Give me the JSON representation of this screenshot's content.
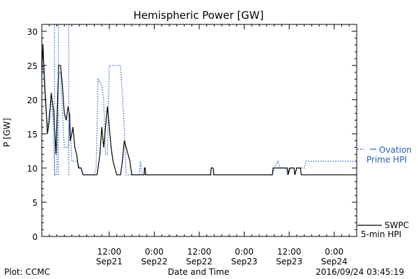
{
  "chart_data": {
    "type": "line",
    "title": "Hemispheric Power [GW]",
    "ylabel": "P [GW]",
    "xlabel": "Date and Time",
    "ylim": [
      0,
      31
    ],
    "xlim_hours_from_sep21_0000": [
      -6,
      78
    ],
    "yticks": [
      0,
      5,
      10,
      15,
      20,
      25,
      30
    ],
    "xticks": [
      {
        "hour": 12,
        "time": "12:00",
        "date": "Sep21"
      },
      {
        "hour": 24,
        "time": "0:00",
        "date": "Sep22"
      },
      {
        "hour": 36,
        "time": "12:00",
        "date": "Sep22"
      },
      {
        "hour": 48,
        "time": "0:00",
        "date": "Sep23"
      },
      {
        "hour": 60,
        "time": "12:00",
        "date": "Sep23"
      },
      {
        "hour": 72,
        "time": "0:00",
        "date": "Sep24"
      }
    ],
    "series": [
      {
        "name": "SWPC 5-min HPI",
        "style": "solid",
        "color": "#000000",
        "points": [
          [
            -6,
            24
          ],
          [
            -5.7,
            28
          ],
          [
            -5.3,
            23
          ],
          [
            -5,
            20
          ],
          [
            -4.5,
            15
          ],
          [
            -4,
            17
          ],
          [
            -3.5,
            21
          ],
          [
            -3,
            19
          ],
          [
            -2.8,
            18
          ],
          [
            -2.5,
            15
          ],
          [
            -2.2,
            12
          ],
          [
            -1.8,
            20
          ],
          [
            -1.5,
            25
          ],
          [
            -1,
            25
          ],
          [
            -0.5,
            22
          ],
          [
            0,
            18
          ],
          [
            0.5,
            17
          ],
          [
            1,
            19
          ],
          [
            1.3,
            18
          ],
          [
            1.6,
            14
          ],
          [
            2,
            15
          ],
          [
            2.3,
            16
          ],
          [
            2.8,
            13
          ],
          [
            3.3,
            12
          ],
          [
            3.8,
            10
          ],
          [
            4.5,
            10
          ],
          [
            5,
            9
          ],
          [
            8.7,
            9
          ],
          [
            9,
            10
          ],
          [
            9.5,
            12
          ],
          [
            10,
            16
          ],
          [
            10.5,
            13
          ],
          [
            11,
            16
          ],
          [
            11.5,
            19
          ],
          [
            12,
            16
          ],
          [
            12.5,
            13
          ],
          [
            13,
            11
          ],
          [
            13.5,
            10
          ],
          [
            14,
            9
          ],
          [
            15,
            9
          ],
          [
            15.5,
            11
          ],
          [
            16,
            14
          ],
          [
            16.5,
            13
          ],
          [
            17,
            12
          ],
          [
            17.5,
            11
          ],
          [
            18,
            9
          ],
          [
            21.3,
            9
          ],
          [
            21.4,
            10
          ],
          [
            21.6,
            10
          ],
          [
            21.7,
            9
          ],
          [
            39,
            9
          ],
          [
            39.2,
            10
          ],
          [
            39.7,
            10
          ],
          [
            39.9,
            9
          ],
          [
            55.5,
            9
          ],
          [
            55.7,
            10
          ],
          [
            59.5,
            10
          ],
          [
            59.7,
            9
          ],
          [
            60.2,
            10
          ],
          [
            61.3,
            10
          ],
          [
            61.5,
            9
          ],
          [
            62,
            10
          ],
          [
            63,
            10
          ],
          [
            63.2,
            9
          ],
          [
            78,
            9
          ]
        ]
      },
      {
        "name": "Ovation Prime HPI",
        "style": "dashed",
        "color": "#1f5fbf",
        "points": [
          [
            -6,
            23
          ],
          [
            -5.7,
            25
          ],
          [
            -5.3,
            22
          ],
          [
            -5,
            19
          ],
          [
            -4.5,
            16
          ],
          [
            -3.5,
            20
          ],
          [
            -3,
            17
          ],
          [
            -2.5,
            9
          ],
          [
            -2,
            9
          ],
          [
            -1.7,
            20
          ],
          [
            -1.4,
            24
          ],
          [
            -1,
            24
          ],
          [
            -0.5,
            18
          ],
          [
            0,
            13
          ],
          [
            1,
            13
          ],
          [
            1.5,
            18
          ],
          [
            2,
            11
          ],
          [
            3.5,
            11
          ],
          [
            4,
            10
          ],
          [
            4.5,
            10
          ],
          [
            5,
            9
          ],
          [
            8,
            9
          ],
          [
            8.5,
            10
          ],
          [
            9,
            23
          ],
          [
            10,
            22
          ],
          [
            10.5,
            20
          ],
          [
            11,
            12
          ],
          [
            11.5,
            12
          ],
          [
            12,
            25
          ],
          [
            14,
            25
          ],
          [
            15,
            25
          ],
          [
            16,
            16
          ],
          [
            16.5,
            9
          ],
          [
            20,
            9
          ],
          [
            20.3,
            11
          ],
          [
            20.8,
            9
          ],
          [
            55.5,
            9
          ],
          [
            56,
            10
          ],
          [
            57,
            11
          ],
          [
            57.5,
            10
          ],
          [
            58,
            10
          ],
          [
            59,
            10
          ],
          [
            59.5,
            9
          ],
          [
            60,
            10
          ],
          [
            61.3,
            10
          ],
          [
            61.5,
            9
          ],
          [
            62,
            10
          ],
          [
            64,
            10
          ],
          [
            64.5,
            11
          ],
          [
            78,
            11
          ]
        ]
      }
    ],
    "spike_lines": [
      {
        "series": "Ovation Prime HPI",
        "hour": -2.6,
        "to": 31
      },
      {
        "series": "Ovation Prime HPI",
        "hour": -1.6,
        "to": 31
      },
      {
        "series": "Ovation Prime HPI",
        "hour": 1.2,
        "to": 31
      }
    ],
    "legend": [
      {
        "name": "ovation",
        "line1": "Ovation",
        "line2": "Prime HPI",
        "color": "#1f5fbf",
        "style": "dashed"
      },
      {
        "name": "swpc",
        "line1": "SWPC",
        "line2": "5-min HPI",
        "color": "#000000",
        "style": "solid"
      }
    ],
    "grid": false
  },
  "footer": {
    "left": "Plot: CCMC",
    "center": "Date and Time",
    "right": "2016/09/24 03:45:19"
  }
}
